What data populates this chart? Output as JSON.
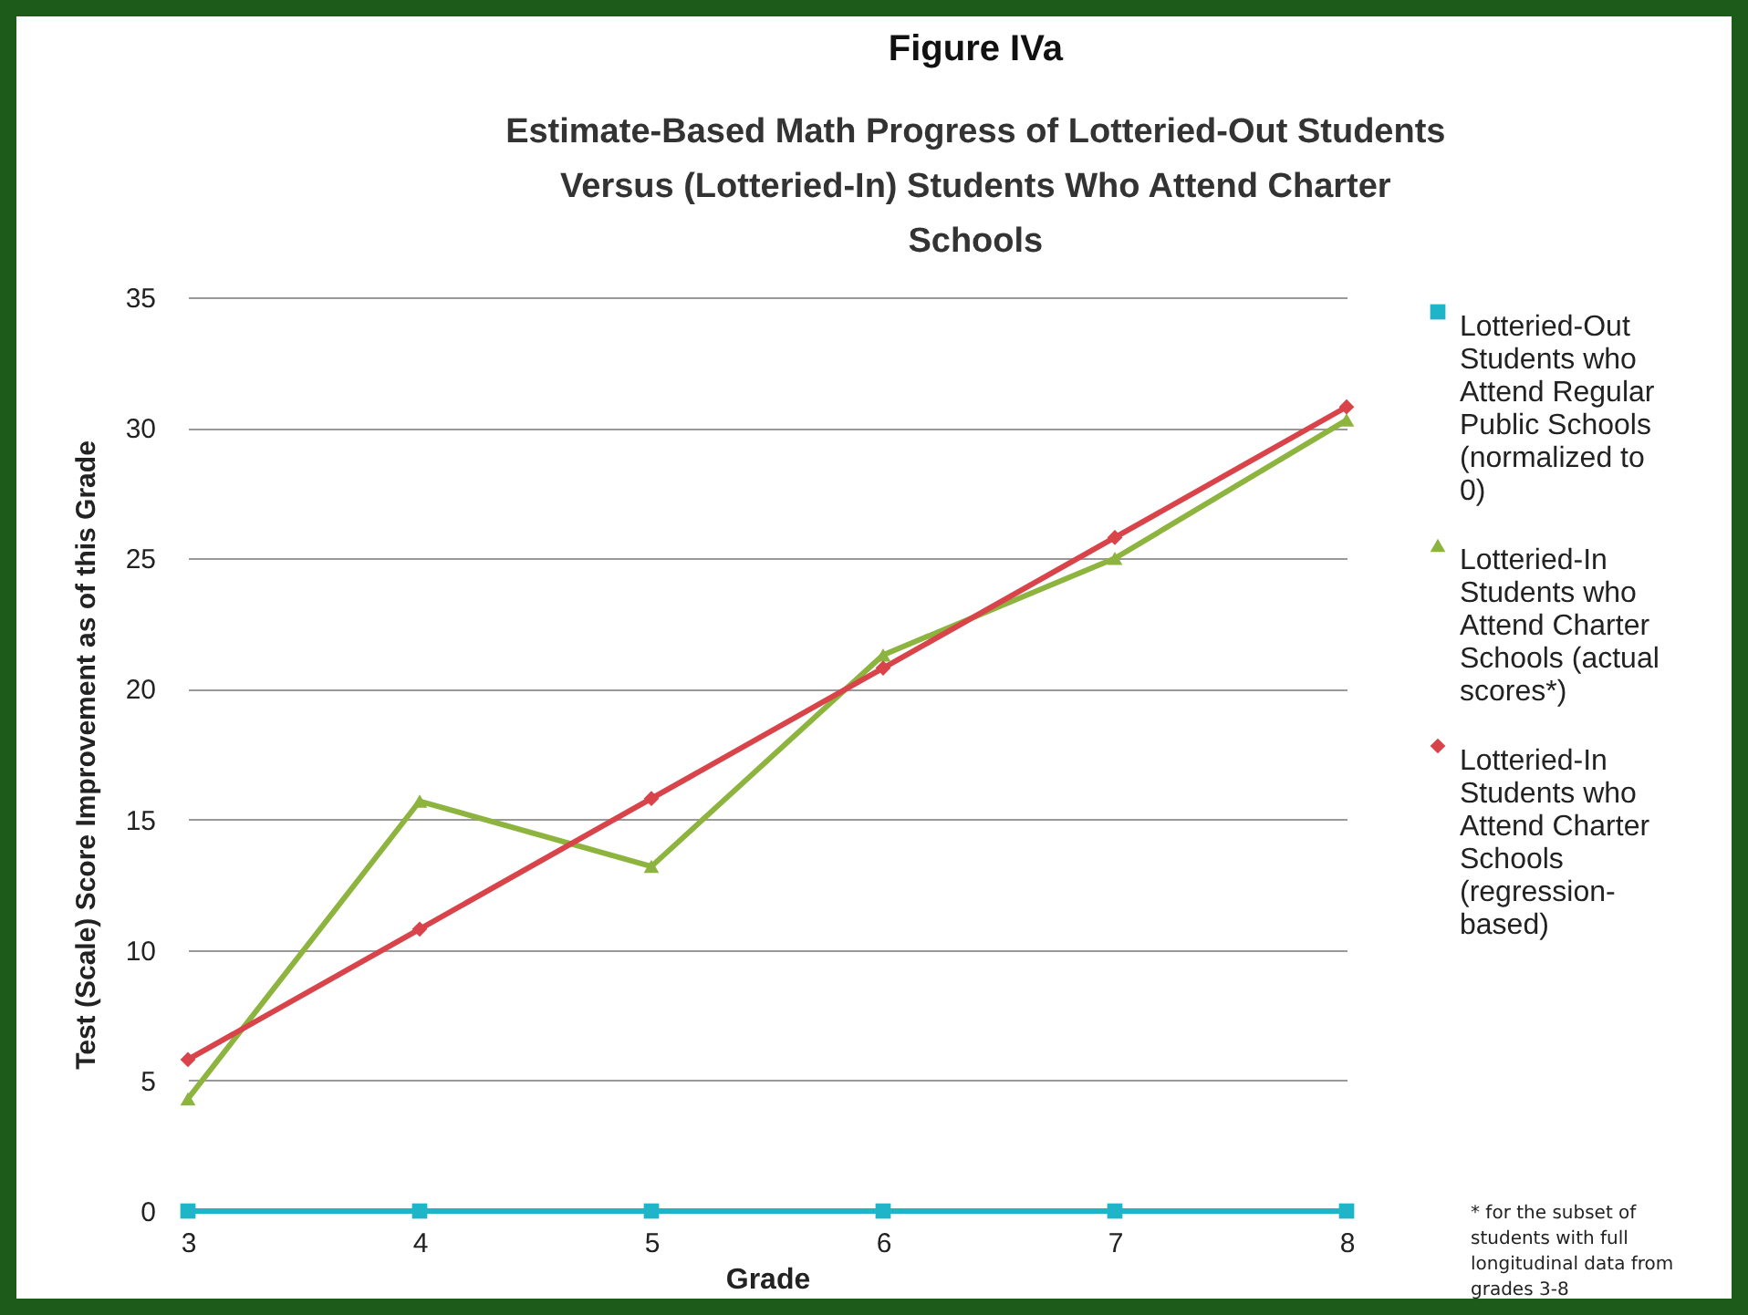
{
  "chart_data": {
    "type": "line",
    "title": "Figure IVa",
    "subtitle": "Estimate-Based Math Progress of Lotteried-Out Students Versus (Lotteried-In) Students Who Attend Charter Schools",
    "xlabel": "Grade",
    "ylabel": "Test (Scale) Score Improvement as of this Grade",
    "categories": [
      "3",
      "4",
      "5",
      "6",
      "7",
      "8"
    ],
    "series": [
      {
        "name": "Lotteried-Out Students who Attend Regular Public Schools (normalized to 0)",
        "color": "#1fb5c9",
        "marker": "square",
        "values": [
          0,
          0,
          0,
          0,
          0,
          0
        ]
      },
      {
        "name": "Lotteried-In Students who Attend Charter Schools (actual scores*)",
        "color": "#8db43e",
        "marker": "triangle",
        "values": [
          4.3,
          15.7,
          13.2,
          21.3,
          25,
          30.3
        ]
      },
      {
        "name": "Lotteried-In Students who Attend Charter Schools (regression-based)",
        "color": "#d9434a",
        "marker": "diamond",
        "values": [
          5.8,
          10.8,
          15.8,
          20.8,
          25.8,
          30.8
        ]
      }
    ],
    "ylim": [
      0,
      35
    ],
    "yticks": [
      0,
      5,
      10,
      15,
      20,
      25,
      30,
      35
    ],
    "grid": "y",
    "legend": "right",
    "annotations": [
      "* for the subset of students with full longitudinal data from grades 3-8"
    ]
  }
}
